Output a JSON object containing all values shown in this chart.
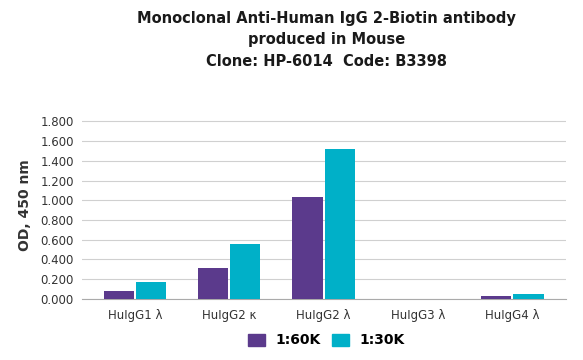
{
  "title_line1": "Monoclonal Anti-Human IgG 2-Biotin antibody",
  "title_line2": "produced in Mouse",
  "title_line3": "Clone: HP-6014  Code: B3398",
  "categories": [
    "HuIgG1 λ",
    "HuIgG2 κ",
    "HuIgG2 λ",
    "HuIgG3 λ",
    "HuIgG4 λ"
  ],
  "series": [
    {
      "label": "1:60K",
      "color": "#5b3a8c",
      "values": [
        0.075,
        0.315,
        1.03,
        0.0,
        0.028
      ]
    },
    {
      "label": "1:30K",
      "color": "#00b0c8",
      "values": [
        0.17,
        0.56,
        1.525,
        0.0,
        0.052
      ]
    }
  ],
  "ylabel": "OD, 450 nm",
  "ylim": [
    0,
    1.9
  ],
  "yticks": [
    0.0,
    0.2,
    0.4,
    0.6,
    0.8,
    1.0,
    1.2,
    1.4,
    1.6,
    1.8
  ],
  "ytick_labels": [
    "0.000",
    "0.200",
    "0.400",
    "0.600",
    "0.800",
    "1.000",
    "1.200",
    "1.400",
    "1.600",
    "1.800"
  ],
  "background_color": "#ffffff",
  "grid_color": "#d0d0d0",
  "title_fontsize": 10.5,
  "axis_label_fontsize": 10,
  "tick_fontsize": 8.5,
  "legend_fontsize": 10,
  "bar_width": 0.32,
  "bar_gap": 0.02
}
